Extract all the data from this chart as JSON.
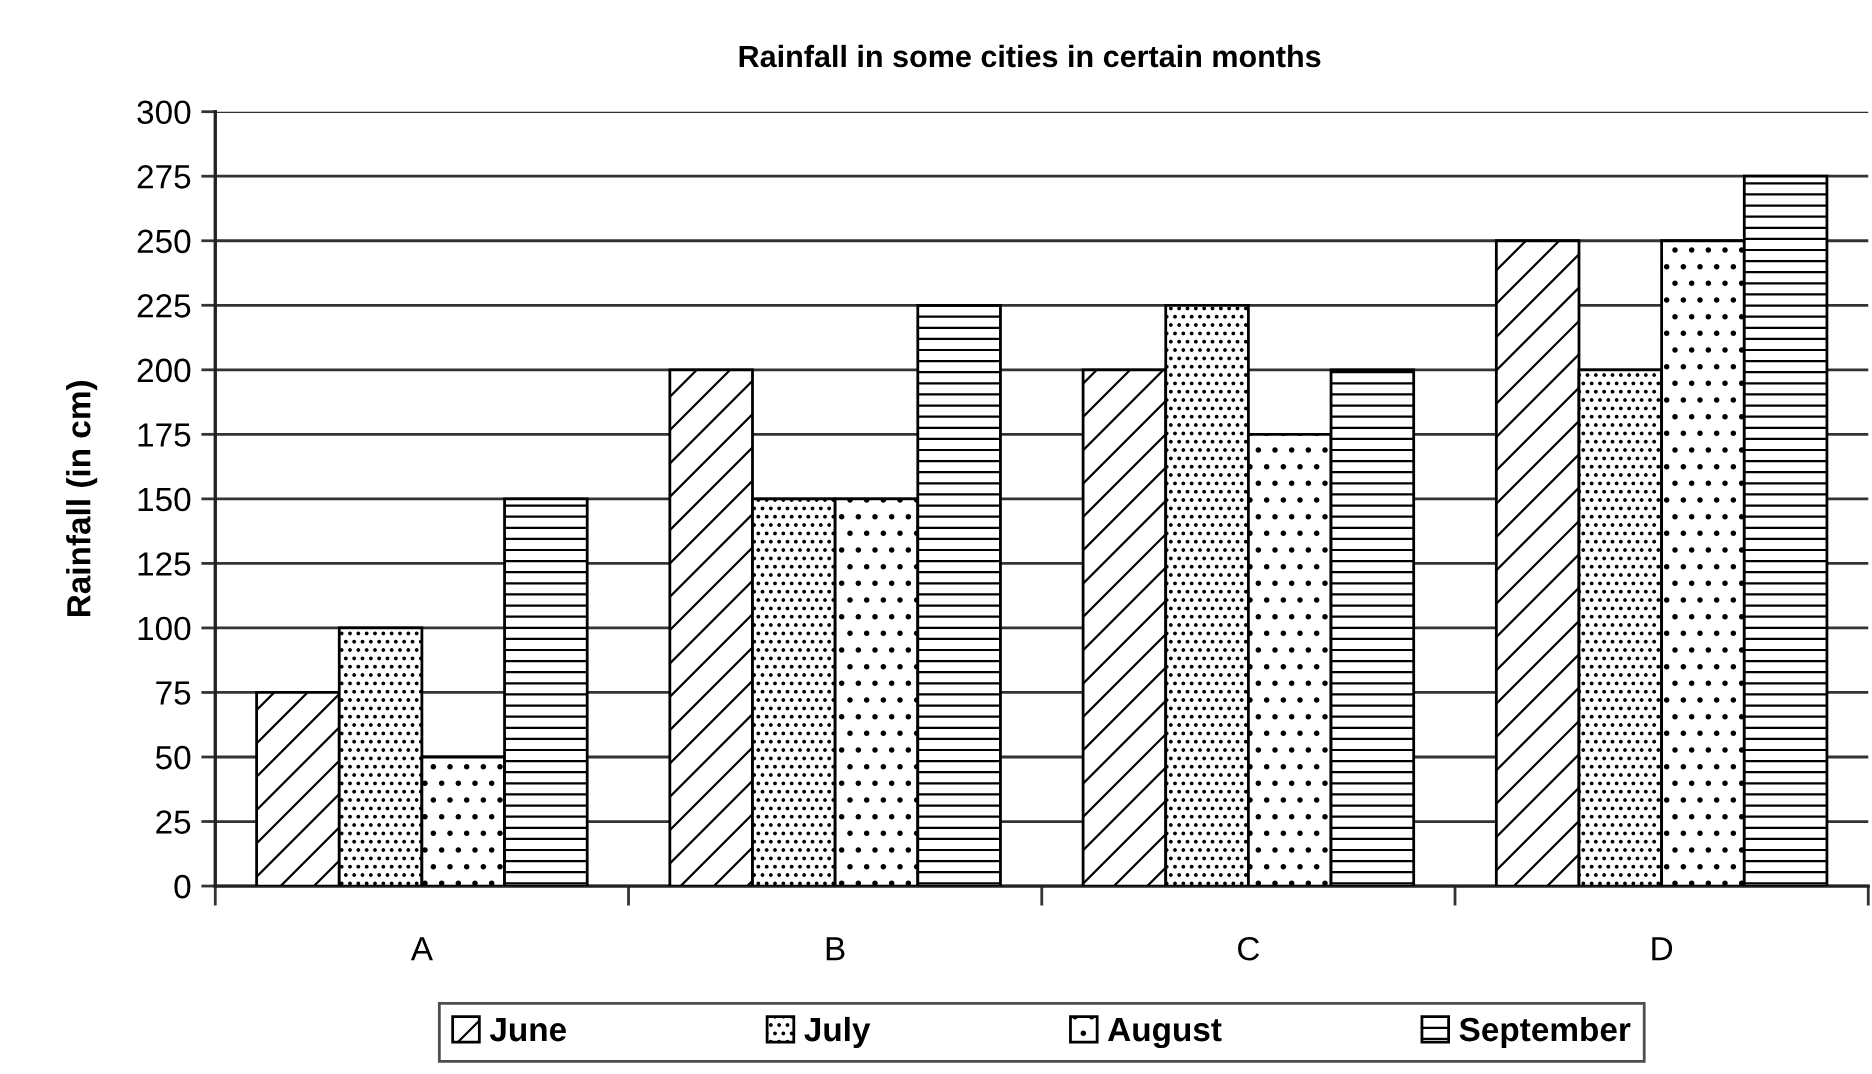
{
  "chart_data": {
    "type": "bar",
    "title": "Rainfall in some cities in certain months",
    "ylabel": "Rainfall (in cm)",
    "categories": [
      "A",
      "B",
      "C",
      "D"
    ],
    "series": [
      {
        "name": "June",
        "color": "#000000",
        "values": [
          75,
          200,
          200,
          250
        ]
      },
      {
        "name": "July",
        "color": "#000000",
        "values": [
          100,
          150,
          225,
          200
        ]
      },
      {
        "name": "August",
        "color": "#000000",
        "values": [
          50,
          150,
          175,
          250
        ]
      },
      {
        "name": "September",
        "color": "#000000",
        "values": [
          150,
          225,
          200,
          275
        ]
      }
    ],
    "ylim": [
      0,
      300
    ],
    "yticks": [
      0,
      25,
      50,
      75,
      100,
      125,
      150,
      175,
      200,
      225,
      250,
      275,
      300
    ],
    "grid": "y",
    "legend": "bottom"
  }
}
